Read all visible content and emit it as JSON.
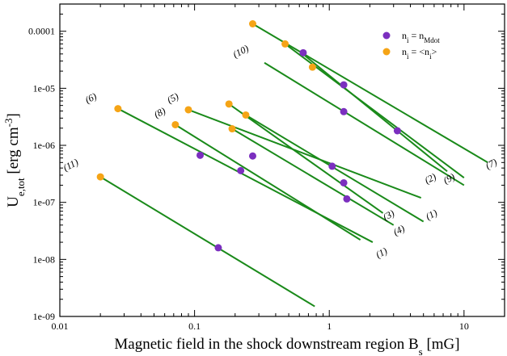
{
  "chart_data": {
    "type": "line",
    "title": "",
    "xlabel": {
      "main": "Magnetic field in the shock downstream region B",
      "sub": "s",
      "unit": " [mG]"
    },
    "ylabel": {
      "main": "U",
      "sub": "e,tot",
      "unit": " [erg cm",
      "sup": "-3",
      "close": "]"
    },
    "xscale": "log",
    "yscale": "log",
    "xlim": [
      0.01,
      20
    ],
    "ylim": [
      1e-09,
      0.0003
    ],
    "x_ticks": [
      {
        "value": 0.01,
        "label": "0.01"
      },
      {
        "value": 0.1,
        "label": "0.1"
      },
      {
        "value": 1,
        "label": "1"
      },
      {
        "value": 10,
        "label": "10"
      }
    ],
    "y_ticks": [
      {
        "value": 1e-09,
        "label": "1e-09"
      },
      {
        "value": 1e-08,
        "label": "1e-08"
      },
      {
        "value": 1e-07,
        "label": "1e-07"
      },
      {
        "value": 1e-06,
        "label": "1e-06"
      },
      {
        "value": 1e-05,
        "label": "1e-05"
      },
      {
        "value": 0.0001,
        "label": "0.0001"
      }
    ],
    "grid": false,
    "legend_position": "top-right",
    "legend": [
      {
        "marker": "purple",
        "text": "n",
        "sub": "i",
        "text2": " = n",
        "sub2": "Mdot"
      },
      {
        "marker": "orange",
        "text": "n",
        "sub": "i",
        "text2": " = <n",
        "sub2": "i",
        "text3": ">"
      }
    ],
    "colors": {
      "line": "#1a8a1a",
      "purple": "#7b2fbf",
      "orange": "#f5a416"
    },
    "lines": [
      {
        "label": "(7)",
        "x": [
          0.27,
          15
        ],
        "y": [
          0.000135,
          5e-07
        ]
      },
      {
        "label": "(9)",
        "x": [
          0.47,
          10
        ],
        "y": [
          6e-05,
          2.7e-07
        ]
      },
      {
        "label": "(2)",
        "x": [
          0.62,
          7.5
        ],
        "y": [
          4.2e-05,
          3.5e-07
        ]
      },
      {
        "label": "(10)",
        "x": [
          0.33,
          10
        ],
        "y": [
          2.8e-05,
          2e-07
        ]
      },
      {
        "label": "(6)",
        "x": [
          0.027,
          2.1
        ],
        "y": [
          4.4e-06,
          2e-08
        ]
      },
      {
        "label": "(5)",
        "x": [
          0.09,
          4.8
        ],
        "y": [
          4.2e-06,
          1.2e-07
        ]
      },
      {
        "label": "(8)",
        "x": [
          0.072,
          1.7
        ],
        "y": [
          2.3e-06,
          2.2e-08
        ]
      },
      {
        "label": "(3)",
        "x": [
          0.18,
          2.5
        ],
        "y": [
          5.3e-06,
          6.5e-08
        ]
      },
      {
        "label": "(4)",
        "x": [
          0.19,
          3.0
        ],
        "y": [
          1.95e-06,
          4e-08
        ]
      },
      {
        "label": "(1)",
        "x": [
          0.24,
          5.0
        ],
        "y": [
          3.4e-06,
          4.6e-08
        ]
      },
      {
        "label": "(11)",
        "x": [
          0.02,
          0.78
        ],
        "y": [
          2.8e-07,
          1.5e-09
        ]
      }
    ],
    "label_positions": [
      {
        "label": "(7)",
        "x": 15,
        "y": 3.8e-07
      },
      {
        "label": "(9)",
        "x": 7.3,
        "y": 2.1e-07
      },
      {
        "label": "(2)",
        "x": 5.3,
        "y": 2.1e-07
      },
      {
        "label": "(10)",
        "x": 0.2,
        "y": 3.4e-05
      },
      {
        "label": "(6)",
        "x": 0.016,
        "y": 5.4e-06
      },
      {
        "label": "(5)",
        "x": 0.065,
        "y": 5.4e-06
      },
      {
        "label": "(8)",
        "x": 0.052,
        "y": 3e-06
      },
      {
        "label": "(3)",
        "x": 2.6,
        "y": 4.8e-08
      },
      {
        "label": "(4)",
        "x": 3.1,
        "y": 2.6e-08
      },
      {
        "label": "(1)",
        "x": 5.4,
        "y": 4.9e-08
      },
      {
        "label": "(1)",
        "x": 2.3,
        "y": 1.05e-08
      },
      {
        "label": "(11)",
        "x": 0.011,
        "y": 3.5e-07
      }
    ],
    "points": [
      {
        "series": "n_Mdot",
        "color": "purple",
        "x": 0.64,
        "y": 4.2e-05
      },
      {
        "series": "n_Mdot",
        "color": "purple",
        "x": 1.28,
        "y": 1.15e-05
      },
      {
        "series": "n_Mdot",
        "color": "purple",
        "x": 1.28,
        "y": 3.9e-06
      },
      {
        "series": "n_Mdot",
        "color": "purple",
        "x": 3.2,
        "y": 1.8e-06
      },
      {
        "series": "n_Mdot",
        "color": "purple",
        "x": 0.11,
        "y": 6.7e-07
      },
      {
        "series": "n_Mdot",
        "color": "purple",
        "x": 0.27,
        "y": 6.5e-07
      },
      {
        "series": "n_Mdot",
        "color": "purple",
        "x": 0.22,
        "y": 3.6e-07
      },
      {
        "series": "n_Mdot",
        "color": "purple",
        "x": 1.05,
        "y": 4.3e-07
      },
      {
        "series": "n_Mdot",
        "color": "purple",
        "x": 1.28,
        "y": 2.2e-07
      },
      {
        "series": "n_Mdot",
        "color": "purple",
        "x": 1.35,
        "y": 1.15e-07
      },
      {
        "series": "n_Mdot",
        "color": "purple",
        "x": 0.15,
        "y": 1.6e-08
      },
      {
        "series": "<n_i>",
        "color": "orange",
        "x": 0.27,
        "y": 0.000135
      },
      {
        "series": "<n_i>",
        "color": "orange",
        "x": 0.47,
        "y": 6e-05
      },
      {
        "series": "<n_i>",
        "color": "orange",
        "x": 0.75,
        "y": 2.35e-05
      },
      {
        "series": "<n_i>",
        "color": "orange",
        "x": 0.027,
        "y": 4.4e-06
      },
      {
        "series": "<n_i>",
        "color": "orange",
        "x": 0.09,
        "y": 4.2e-06
      },
      {
        "series": "<n_i>",
        "color": "orange",
        "x": 0.072,
        "y": 2.3e-06
      },
      {
        "series": "<n_i>",
        "color": "orange",
        "x": 0.18,
        "y": 5.3e-06
      },
      {
        "series": "<n_i>",
        "color": "orange",
        "x": 0.24,
        "y": 3.4e-06
      },
      {
        "series": "<n_i>",
        "color": "orange",
        "x": 0.19,
        "y": 1.95e-06
      },
      {
        "series": "<n_i>",
        "color": "orange",
        "x": 0.02,
        "y": 2.8e-07
      }
    ]
  }
}
